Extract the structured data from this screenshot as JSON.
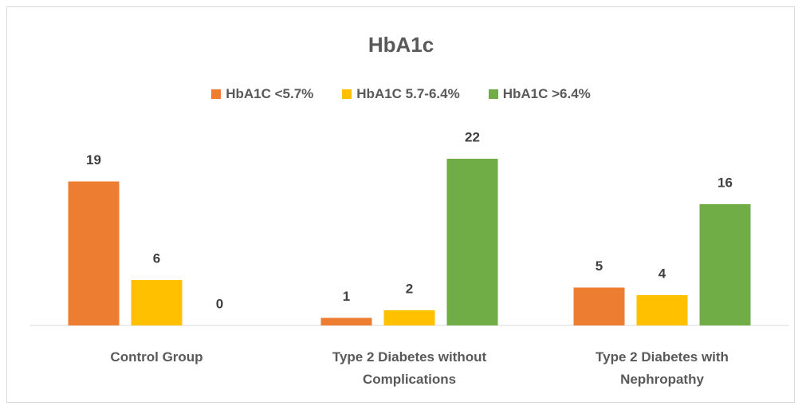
{
  "chart_data": {
    "type": "bar",
    "title": "HbA1c",
    "categories": [
      "Control Group",
      "Type 2 Diabetes without Complications",
      "Type 2 Diabetes with Nephropathy"
    ],
    "series": [
      {
        "name": "HbA1C <5.7%",
        "color": "#ed7d31",
        "values": [
          19,
          1,
          5
        ]
      },
      {
        "name": "HbA1C 5.7-6.4%",
        "color": "#ffc000",
        "values": [
          6,
          2,
          4
        ]
      },
      {
        "name": "HbA1C >6.4%",
        "color": "#70ad47",
        "values": [
          0,
          22,
          16
        ]
      }
    ],
    "legend": "top"
  }
}
